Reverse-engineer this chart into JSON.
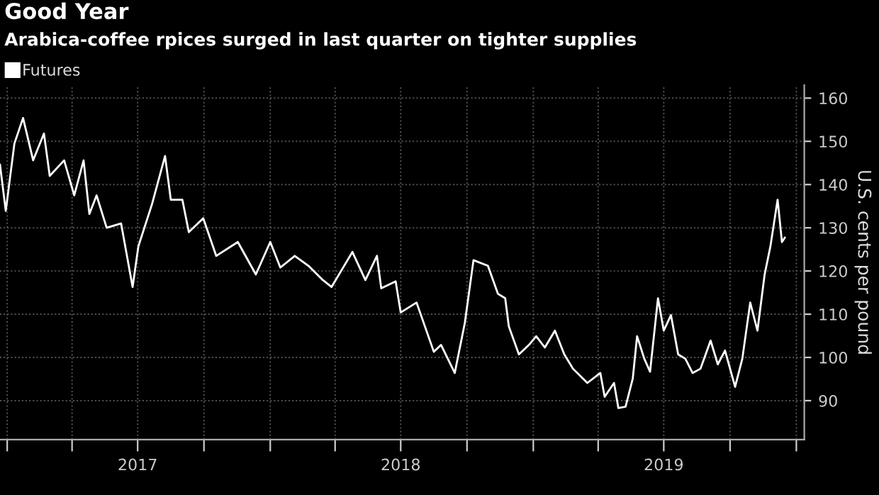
{
  "chart_data": {
    "type": "line",
    "title": "Good Year",
    "subtitle": "Arabica-coffee rpices surged in last quarter on tighter supplies",
    "ylabel": "U.S. cents per pound",
    "x": [
      "2016-12-22",
      "2016-12-30",
      "2017-01-11",
      "2017-01-23",
      "2017-02-06",
      "2017-02-21",
      "2017-03-01",
      "2017-03-21",
      "2017-04-04",
      "2017-04-17",
      "2017-04-25",
      "2017-05-05",
      "2017-05-19",
      "2017-06-08",
      "2017-06-24",
      "2017-07-02",
      "2017-07-21",
      "2017-08-08",
      "2017-08-16",
      "2017-09-01",
      "2017-09-10",
      "2017-09-30",
      "2017-10-18",
      "2017-11-17",
      "2017-12-12",
      "2018-01-01",
      "2018-01-15",
      "2018-02-04",
      "2018-02-23",
      "2018-03-15",
      "2018-03-27",
      "2018-04-10",
      "2018-04-25",
      "2018-05-13",
      "2018-05-29",
      "2018-06-04",
      "2018-06-24",
      "2018-07-01",
      "2018-07-23",
      "2018-08-16",
      "2018-08-26",
      "2018-09-14",
      "2018-09-28",
      "2018-10-10",
      "2018-10-30",
      "2018-11-13",
      "2018-11-23",
      "2018-11-28",
      "2018-12-12",
      "2018-12-26",
      "2019-01-05",
      "2019-01-17",
      "2019-01-31",
      "2019-02-13",
      "2019-02-25",
      "2019-03-17",
      "2019-04-04",
      "2019-04-10",
      "2019-04-23",
      "2019-04-29",
      "2019-05-09",
      "2019-05-19",
      "2019-05-25",
      "2019-06-04",
      "2019-06-12",
      "2019-06-23",
      "2019-07-01",
      "2019-07-11",
      "2019-07-21",
      "2019-07-31",
      "2019-08-10",
      "2019-08-21",
      "2019-09-04",
      "2019-09-14",
      "2019-09-24",
      "2019-10-08",
      "2019-10-18",
      "2019-10-29",
      "2019-11-08",
      "2019-11-18",
      "2019-11-26",
      "2019-12-06",
      "2019-12-12",
      "2019-12-16"
    ],
    "series": [
      {
        "name": "Futures",
        "color": "#ffffff",
        "values": [
          144.6,
          133.9,
          149.5,
          155.4,
          145.6,
          151.8,
          142,
          145.6,
          137.5,
          145.6,
          133.2,
          137.5,
          130,
          131,
          116.3,
          125.7,
          135.5,
          146.6,
          136.5,
          136.5,
          129,
          132.2,
          123.5,
          126.7,
          119.2,
          126.7,
          120.8,
          123.5,
          121.2,
          117.9,
          116.3,
          120.2,
          124.4,
          117.9,
          123.5,
          116,
          117.6,
          110.4,
          112.7,
          101.3,
          102.9,
          96.4,
          108,
          122.5,
          121.2,
          114.7,
          113.7,
          107.2,
          100.7,
          102.9,
          104.9,
          102.3,
          106.2,
          100.7,
          97.4,
          94.1,
          96.4,
          90.9,
          94.1,
          88.3,
          88.6,
          95.1,
          104.9,
          99.7,
          96.7,
          113.7,
          106.2,
          109.8,
          100.7,
          99.7,
          96.4,
          97.4,
          103.9,
          98.4,
          101.6,
          93.2,
          99.7,
          112.7,
          106.2,
          119.2,
          125.7,
          136.5,
          126.7,
          127.7
        ]
      }
    ],
    "xlim": [
      "2016-12-22",
      "2020-01-12"
    ],
    "xticks": [
      {
        "value": "2017-01-01",
        "label": null
      },
      {
        "value": "2017-04-01",
        "label": null
      },
      {
        "value": "2017-07-01",
        "label": "2017"
      },
      {
        "value": "2017-10-01",
        "label": null
      },
      {
        "value": "2018-01-01",
        "label": null
      },
      {
        "value": "2018-04-01",
        "label": null
      },
      {
        "value": "2018-07-01",
        "label": "2018"
      },
      {
        "value": "2018-10-01",
        "label": null
      },
      {
        "value": "2019-01-01",
        "label": null
      },
      {
        "value": "2019-04-01",
        "label": null
      },
      {
        "value": "2019-07-01",
        "label": "2019"
      },
      {
        "value": "2019-10-01",
        "label": null
      },
      {
        "value": "2020-01-01",
        "label": null
      }
    ],
    "ylim": [
      81,
      163
    ],
    "yticks": [
      90,
      100,
      110,
      120,
      130,
      140,
      150,
      160
    ],
    "grid": true,
    "legend": "top left",
    "marker": "none",
    "line_style": "solid"
  }
}
